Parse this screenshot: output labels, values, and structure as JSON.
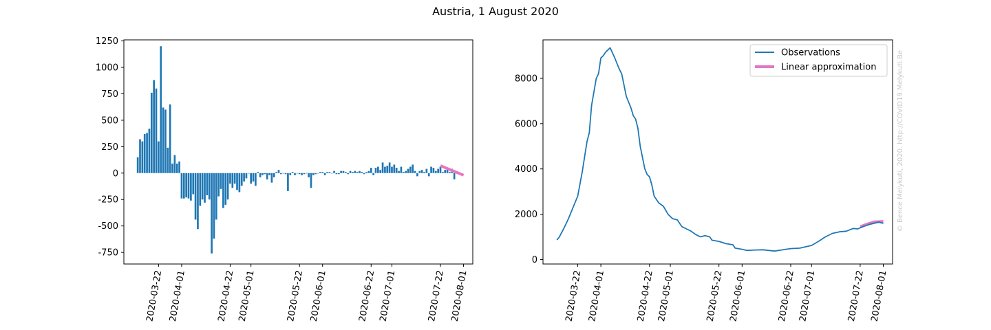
{
  "figure": {
    "title": "Austria, 1 August 2020",
    "credit": "© Bence Melykuti, 2020. http://COVID19.Melykuti.Be"
  },
  "colors": {
    "observations": "#1f77b4",
    "approximation": "#e377c2"
  },
  "chart_data": [
    {
      "type": "bar",
      "name": "daily-change",
      "x_start": "2020-03-13",
      "x_end": "2020-08-01",
      "xlim": [
        "2020-03-07",
        "2020-08-05"
      ],
      "ylim": [
        -860,
        1260
      ],
      "x_ticks": [
        "2020-03-22",
        "2020-04-01",
        "2020-04-22",
        "2020-05-01",
        "2020-05-22",
        "2020-06-01",
        "2020-06-22",
        "2020-07-01",
        "2020-07-22",
        "2020-08-01"
      ],
      "y_ticks": [
        -750,
        -500,
        -250,
        0,
        250,
        500,
        750,
        1000,
        1250
      ],
      "values": [
        150,
        320,
        300,
        370,
        380,
        420,
        760,
        880,
        800,
        300,
        1200,
        620,
        600,
        240,
        650,
        90,
        170,
        90,
        110,
        -240,
        -240,
        -230,
        -240,
        -260,
        -200,
        -440,
        -530,
        -310,
        -250,
        -280,
        -210,
        -250,
        -760,
        -620,
        -440,
        -220,
        -150,
        -330,
        -300,
        -250,
        -100,
        -140,
        -100,
        -160,
        -180,
        -120,
        -80,
        -50,
        0,
        -100,
        -80,
        -120,
        10,
        -40,
        -20,
        -10,
        -60,
        -20,
        -90,
        -40,
        10,
        30,
        -10,
        0,
        -10,
        -170,
        -20,
        10,
        -20,
        0,
        -10,
        -20,
        -10,
        0,
        -40,
        -140,
        -20,
        -10,
        0,
        10,
        10,
        -20,
        10,
        10,
        0,
        20,
        -10,
        -10,
        20,
        20,
        10,
        -10,
        20,
        10,
        20,
        10,
        20,
        10,
        -10,
        10,
        20,
        50,
        -20,
        50,
        60,
        30,
        100,
        60,
        70,
        100,
        60,
        80,
        50,
        20,
        60,
        10,
        20,
        40,
        60,
        80,
        20,
        -30,
        20,
        30,
        10,
        40,
        -30,
        60,
        50,
        20,
        40,
        60,
        10,
        30,
        50,
        10,
        40,
        -60
      ],
      "fit": {
        "x": [
          "2020-07-22",
          "2020-08-01"
        ],
        "y": [
          70,
          -20
        ]
      }
    },
    {
      "type": "line",
      "name": "active-cases",
      "xlim": [
        "2020-03-07",
        "2020-08-05"
      ],
      "ylim": [
        -200,
        9700
      ],
      "x_ticks": [
        "2020-03-22",
        "2020-04-01",
        "2020-04-22",
        "2020-05-01",
        "2020-05-22",
        "2020-06-01",
        "2020-06-22",
        "2020-07-01",
        "2020-07-22",
        "2020-08-01"
      ],
      "y_ticks": [
        0,
        2000,
        4000,
        6000,
        8000
      ],
      "legend": [
        "Observations",
        "Linear approximation"
      ],
      "legend_position": "upper right",
      "series_points": [
        [
          "2020-03-13",
          860
        ],
        [
          "2020-03-14",
          980
        ],
        [
          "2020-03-16",
          1370
        ],
        [
          "2020-03-18",
          1800
        ],
        [
          "2020-03-20",
          2300
        ],
        [
          "2020-03-22",
          2800
        ],
        [
          "2020-03-24",
          3900
        ],
        [
          "2020-03-26",
          5200
        ],
        [
          "2020-03-27",
          5600
        ],
        [
          "2020-03-28",
          6800
        ],
        [
          "2020-03-30",
          8000
        ],
        [
          "2020-03-31",
          8200
        ],
        [
          "2020-04-01",
          8900
        ],
        [
          "2020-04-02",
          9000
        ],
        [
          "2020-04-03",
          9150
        ],
        [
          "2020-04-04",
          9250
        ],
        [
          "2020-04-05",
          9350
        ],
        [
          "2020-04-07",
          8900
        ],
        [
          "2020-04-09",
          8400
        ],
        [
          "2020-04-10",
          8200
        ],
        [
          "2020-04-12",
          7200
        ],
        [
          "2020-04-14",
          6700
        ],
        [
          "2020-04-15",
          6350
        ],
        [
          "2020-04-16",
          6200
        ],
        [
          "2020-04-17",
          5800
        ],
        [
          "2020-04-18",
          5000
        ],
        [
          "2020-04-20",
          4000
        ],
        [
          "2020-04-21",
          3750
        ],
        [
          "2020-04-22",
          3650
        ],
        [
          "2020-04-23",
          3300
        ],
        [
          "2020-04-24",
          2800
        ],
        [
          "2020-04-26",
          2500
        ],
        [
          "2020-04-28",
          2350
        ],
        [
          "2020-04-30",
          2000
        ],
        [
          "2020-05-02",
          1800
        ],
        [
          "2020-05-04",
          1750
        ],
        [
          "2020-05-06",
          1450
        ],
        [
          "2020-05-08",
          1350
        ],
        [
          "2020-05-10",
          1250
        ],
        [
          "2020-05-12",
          1100
        ],
        [
          "2020-05-14",
          1000
        ],
        [
          "2020-05-16",
          1050
        ],
        [
          "2020-05-18",
          1000
        ],
        [
          "2020-05-19",
          850
        ],
        [
          "2020-05-22",
          800
        ],
        [
          "2020-05-25",
          700
        ],
        [
          "2020-05-28",
          650
        ],
        [
          "2020-05-29",
          500
        ],
        [
          "2020-06-01",
          450
        ],
        [
          "2020-06-03",
          400
        ],
        [
          "2020-06-07",
          420
        ],
        [
          "2020-06-10",
          430
        ],
        [
          "2020-06-15",
          370
        ],
        [
          "2020-06-18",
          420
        ],
        [
          "2020-06-22",
          480
        ],
        [
          "2020-06-26",
          500
        ],
        [
          "2020-07-01",
          620
        ],
        [
          "2020-07-04",
          800
        ],
        [
          "2020-07-07",
          1000
        ],
        [
          "2020-07-10",
          1150
        ],
        [
          "2020-07-13",
          1220
        ],
        [
          "2020-07-16",
          1250
        ],
        [
          "2020-07-19",
          1370
        ],
        [
          "2020-07-21",
          1350
        ],
        [
          "2020-07-22",
          1400
        ],
        [
          "2020-07-24",
          1480
        ],
        [
          "2020-07-26",
          1550
        ],
        [
          "2020-07-28",
          1600
        ],
        [
          "2020-07-30",
          1650
        ],
        [
          "2020-08-01",
          1600
        ]
      ],
      "fit_points": [
        [
          "2020-07-22",
          1450
        ],
        [
          "2020-07-25",
          1560
        ],
        [
          "2020-07-28",
          1660
        ],
        [
          "2020-08-01",
          1680
        ]
      ]
    }
  ]
}
